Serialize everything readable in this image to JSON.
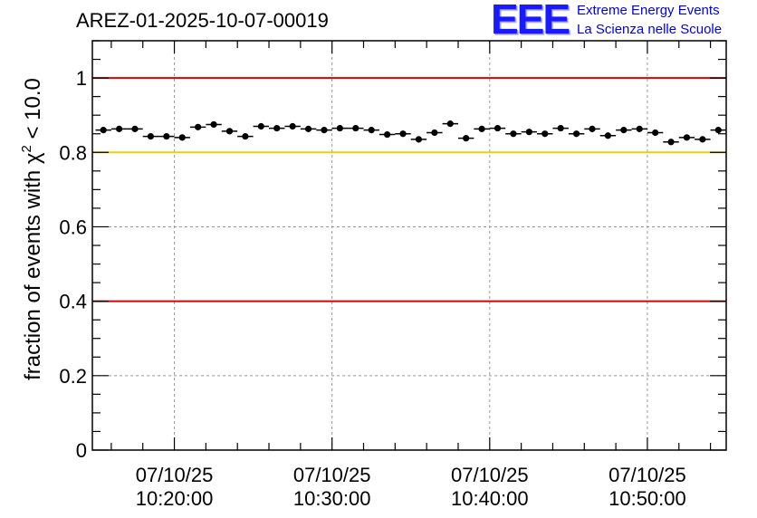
{
  "header": {
    "run_id": "AREZ-01-2025-10-07-00019"
  },
  "logo": {
    "letters": "EEE",
    "line1": "Extreme Energy Events",
    "line2": "La Scienza nelle Scuole"
  },
  "colors": {
    "red_line": "#dd0000",
    "yellow_line": "#ffc800",
    "grid": "#999999",
    "marker": "#000000"
  },
  "chart_data": {
    "type": "scatter",
    "title": "AREZ-01-2025-10-07-00019",
    "xlabel": "",
    "ylabel_parts": [
      "fraction of events with ",
      "χ",
      "2",
      " < 10.0"
    ],
    "ylim": [
      0,
      1.1
    ],
    "yticks": [
      0,
      0.2,
      0.4,
      0.6,
      0.8,
      1
    ],
    "ytick_labels": [
      "0",
      "0.2",
      "0.4",
      "0.6",
      "0.8",
      "1"
    ],
    "xlim_minutes": [
      4.8,
      45.0
    ],
    "xticks_minutes": [
      10,
      20,
      30,
      40
    ],
    "xtick_labels": [
      [
        "07/10/25",
        "10:20:00"
      ],
      [
        "07/10/25",
        "10:30:00"
      ],
      [
        "07/10/25",
        "10:40:00"
      ],
      [
        "07/10/25",
        "10:50:00"
      ]
    ],
    "x_minor_step": 2,
    "hlines": [
      {
        "y": 1.0,
        "color": "red"
      },
      {
        "y": 0.8,
        "color": "yellow"
      },
      {
        "y": 0.4,
        "color": "red"
      }
    ],
    "bin_width_minutes": 1,
    "x_start_minutes": 5.5,
    "values": [
      0.86,
      0.863,
      0.863,
      0.843,
      0.843,
      0.84,
      0.868,
      0.875,
      0.857,
      0.843,
      0.87,
      0.865,
      0.87,
      0.863,
      0.86,
      0.865,
      0.865,
      0.86,
      0.848,
      0.85,
      0.835,
      0.853,
      0.877,
      0.838,
      0.863,
      0.865,
      0.85,
      0.855,
      0.85,
      0.865,
      0.85,
      0.863,
      0.845,
      0.86,
      0.863,
      0.853,
      0.828,
      0.84,
      0.835,
      0.86
    ],
    "error": 0.008,
    "grid": true
  }
}
